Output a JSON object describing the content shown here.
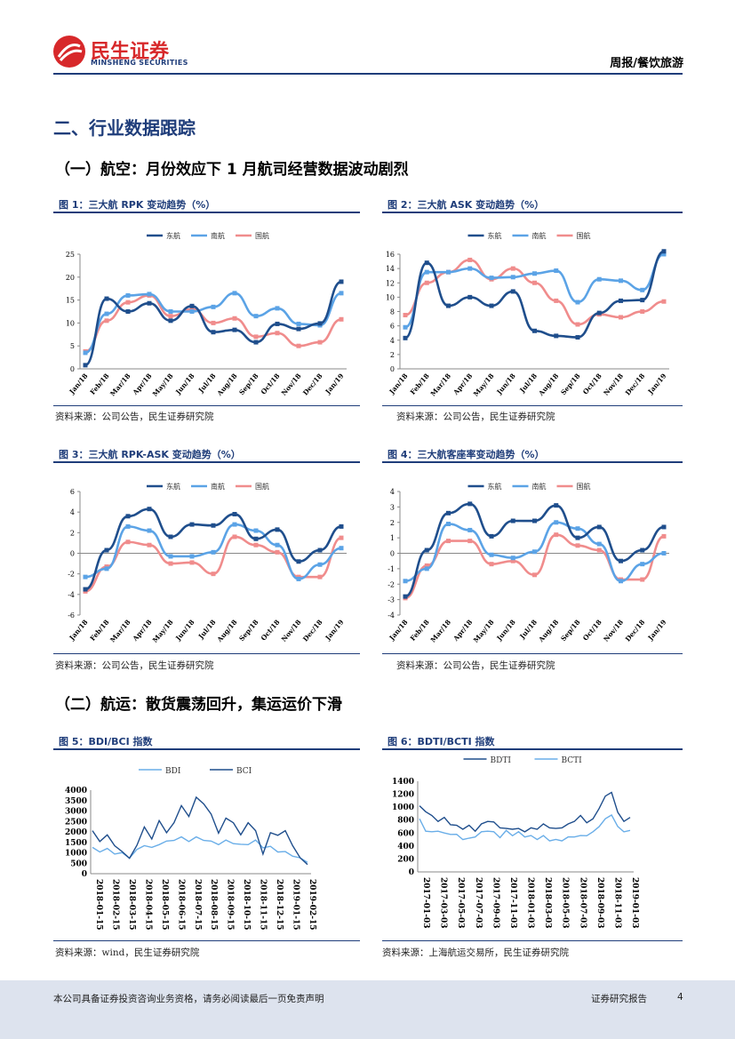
{
  "header": {
    "brand_cn": "民生证券",
    "brand_en": "MINSHENG SECURITIES",
    "report_type": "周报/餐饮旅游"
  },
  "section_title": "二、行业数据跟踪",
  "sub1": "（一）航空：月份效应下 1 月航司经营数据波动剧烈",
  "sub2": "（二）航运：散货震荡回升，集运运价下滑",
  "colors": {
    "dongfang": "#1f4e8c",
    "nanfang": "#5ba3e6",
    "guohang": "#f08c8c",
    "brand": "#1f3d7a",
    "logo_red": "#d7282a"
  },
  "figures": [
    {
      "title": "图 1：三大航 RPK 变动趋势（%）",
      "source": "资料来源：公司公告，民生证券研究院"
    },
    {
      "title": "图 2：三大航 ASK 变动趋势（%）",
      "source": "资料来源：公司公告，民生证券研究院"
    },
    {
      "title": "图 3：三大航 RPK-ASK 变动趋势（%）",
      "source": "资料来源：公司公告，民生证券研究院"
    },
    {
      "title": "图 4：三大航客座率变动趋势（%）",
      "source": "资料来源：公司公告，民生证券研究院"
    },
    {
      "title": "图 5：BDI/BCI 指数",
      "source": "资料来源：wind，民生证券研究院"
    },
    {
      "title": "图 6：BDTI/BCTI 指数",
      "source": "资料来源：上海航运交易所，民生证券研究院"
    }
  ],
  "footer": {
    "disclaimer": "本公司具备证券投资咨询业务资格，请务必阅读最后一页免责声明",
    "doc_type": "证券研究报告",
    "page": "4"
  },
  "chart_data": [
    {
      "type": "line",
      "categories": [
        "Jan/18",
        "Feb/18",
        "Mar/18",
        "Apr/18",
        "May/18",
        "Jun/18",
        "Jul/18",
        "Aug/18",
        "Sep/18",
        "Oct/18",
        "Nov/18",
        "Dec/18",
        "Jan/19"
      ],
      "ylim": [
        0,
        25
      ],
      "yticks": [
        0,
        5,
        10,
        15,
        20,
        25
      ],
      "legend": "top-center",
      "series": [
        {
          "name": "东航",
          "values": [
            0.8,
            15.3,
            12.5,
            14.3,
            10.5,
            13.7,
            8.0,
            8.5,
            5.8,
            9.8,
            8.7,
            9.9,
            19.0
          ]
        },
        {
          "name": "南航",
          "values": [
            3.5,
            12.0,
            16.0,
            16.3,
            12.5,
            12.5,
            13.5,
            16.5,
            11.5,
            13.2,
            9.8,
            9.5,
            16.5
          ]
        },
        {
          "name": "国航",
          "values": [
            3.8,
            10.5,
            14.5,
            16.0,
            11.5,
            13.0,
            10.0,
            11.0,
            7.0,
            7.8,
            5.0,
            5.8,
            10.8
          ]
        }
      ]
    },
    {
      "type": "line",
      "categories": [
        "Jan/18",
        "Feb/18",
        "Mar/18",
        "Apr/18",
        "May/18",
        "Jun/18",
        "Jul/18",
        "Aug/18",
        "Sep/18",
        "Oct/18",
        "Nov/18",
        "Dec/18",
        "Jan/19"
      ],
      "ylim": [
        0,
        16
      ],
      "yticks": [
        0,
        2,
        4,
        6,
        8,
        10,
        12,
        14,
        16
      ],
      "legend": "top-center",
      "series": [
        {
          "name": "东航",
          "values": [
            4.3,
            14.8,
            8.8,
            10.0,
            8.8,
            10.8,
            5.3,
            4.6,
            4.4,
            7.8,
            9.5,
            9.6,
            16.4
          ]
        },
        {
          "name": "南航",
          "values": [
            5.8,
            13.5,
            13.5,
            14.0,
            12.7,
            12.8,
            13.3,
            13.7,
            9.3,
            12.5,
            12.3,
            11.0,
            16.0
          ]
        },
        {
          "name": "国航",
          "values": [
            7.5,
            12.0,
            13.5,
            15.2,
            12.5,
            14.0,
            12.0,
            9.5,
            6.2,
            7.6,
            7.2,
            8.0,
            9.4
          ]
        }
      ]
    },
    {
      "type": "line",
      "categories": [
        "Jan/18",
        "Feb/18",
        "Mar/18",
        "Apr/18",
        "May/18",
        "Jun/18",
        "Jul/18",
        "Aug/18",
        "Sep/18",
        "Oct/18",
        "Nov/18",
        "Dec/18",
        "Jan/19"
      ],
      "ylim": [
        -6,
        6
      ],
      "yticks": [
        -6,
        -4,
        -2,
        0,
        2,
        4,
        6
      ],
      "legend": "top-center",
      "series": [
        {
          "name": "东航",
          "values": [
            -3.5,
            0.3,
            3.6,
            4.3,
            1.6,
            2.8,
            2.7,
            3.8,
            1.4,
            2.3,
            -0.8,
            0.3,
            2.6
          ]
        },
        {
          "name": "南航",
          "values": [
            -2.3,
            -1.5,
            2.6,
            2.2,
            -0.3,
            -0.3,
            0.1,
            2.8,
            2.2,
            0.8,
            -2.5,
            -1.1,
            0.5
          ]
        },
        {
          "name": "国航",
          "values": [
            -3.7,
            -1.3,
            1.1,
            0.8,
            -1.0,
            -0.9,
            -2.0,
            1.6,
            0.8,
            0.1,
            -2.3,
            -2.3,
            1.5
          ]
        }
      ]
    },
    {
      "type": "line",
      "categories": [
        "Jan/18",
        "Feb/18",
        "Mar/18",
        "Apr/18",
        "May/18",
        "Jun/18",
        "Jul/18",
        "Aug/18",
        "Sep/18",
        "Oct/18",
        "Nov/18",
        "Dec/18",
        "Jan/19"
      ],
      "ylim": [
        -4,
        4
      ],
      "yticks": [
        -4,
        -3,
        -2,
        -1,
        0,
        1,
        2,
        3,
        4
      ],
      "legend": "top-center",
      "series": [
        {
          "name": "东航",
          "values": [
            -2.8,
            0.2,
            2.6,
            3.2,
            1.1,
            2.1,
            2.1,
            3.1,
            1.0,
            1.7,
            -0.5,
            0.2,
            1.7
          ]
        },
        {
          "name": "南航",
          "values": [
            -1.8,
            -1.0,
            1.9,
            1.5,
            -0.1,
            -0.3,
            0.1,
            2.0,
            1.6,
            0.6,
            -1.8,
            -0.7,
            0.0
          ]
        },
        {
          "name": "国航",
          "values": [
            -2.9,
            -0.8,
            0.8,
            0.8,
            -0.7,
            -0.5,
            -1.4,
            1.2,
            0.5,
            0.2,
            -1.7,
            -1.7,
            1.1
          ]
        }
      ]
    },
    {
      "type": "line",
      "xticks": [
        "2018-01-15",
        "2018-02-15",
        "2018-03-15",
        "2018-04-15",
        "2018-05-15",
        "2018-06-15",
        "2018-07-15",
        "2018-08-15",
        "2018-09-15",
        "2018-10-15",
        "2018-11-15",
        "2018-12-15",
        "2019-01-15",
        "2019-02-15"
      ],
      "ylim": [
        0,
        4000
      ],
      "yticks": [
        0,
        500,
        1000,
        1500,
        2000,
        2500,
        3000,
        3500,
        4000
      ],
      "legend": "top-center",
      "series": [
        {
          "name": "BDI",
          "values": [
            1200,
            1100,
            1150,
            1000,
            950,
            800,
            1100,
            1400,
            1200,
            1450,
            1500,
            1650,
            1700,
            1600,
            1700,
            1650,
            1500,
            1450,
            1550,
            1500,
            1350,
            1450,
            1550,
            1300,
            1250,
            1100,
            1000,
            900,
            700,
            600
          ]
        },
        {
          "name": "BCI",
          "values": [
            2000,
            1600,
            1800,
            1400,
            1000,
            800,
            1300,
            2300,
            1600,
            2600,
            1900,
            2500,
            3200,
            2800,
            3600,
            3400,
            2800,
            2000,
            2600,
            2500,
            1800,
            2500,
            2000,
            1000,
            1900,
            1900,
            2000,
            1400,
            700,
            500
          ]
        }
      ]
    },
    {
      "type": "line",
      "xticks": [
        "2017-01-03",
        "2017-03-03",
        "2017-05-03",
        "2017-07-03",
        "2017-09-03",
        "2017-11-03",
        "2018-01-03",
        "2018-03-03",
        "2018-05-03",
        "2018-07-03",
        "2018-09-03",
        "2018-11-03",
        "2019-01-03"
      ],
      "ylim": [
        0,
        1400
      ],
      "yticks": [
        0,
        200,
        400,
        600,
        800,
        1000,
        1200,
        1400
      ],
      "legend": "top-center",
      "series": [
        {
          "name": "BDTI",
          "values": [
            1000,
            950,
            850,
            800,
            820,
            750,
            700,
            680,
            700,
            650,
            720,
            800,
            750,
            700,
            650,
            680,
            650,
            640,
            660,
            680,
            720,
            700,
            650,
            700,
            720,
            800,
            850,
            780,
            800,
            1000,
            1150,
            1250,
            900,
            800,
            820
          ]
        },
        {
          "name": "BCTI",
          "values": [
            800,
            650,
            600,
            650,
            580,
            600,
            560,
            520,
            500,
            560,
            600,
            650,
            600,
            550,
            620,
            580,
            600,
            560,
            540,
            520,
            540,
            500,
            480,
            500,
            520,
            560,
            540,
            580,
            600,
            720,
            800,
            900,
            680,
            640,
            620
          ]
        }
      ]
    }
  ]
}
